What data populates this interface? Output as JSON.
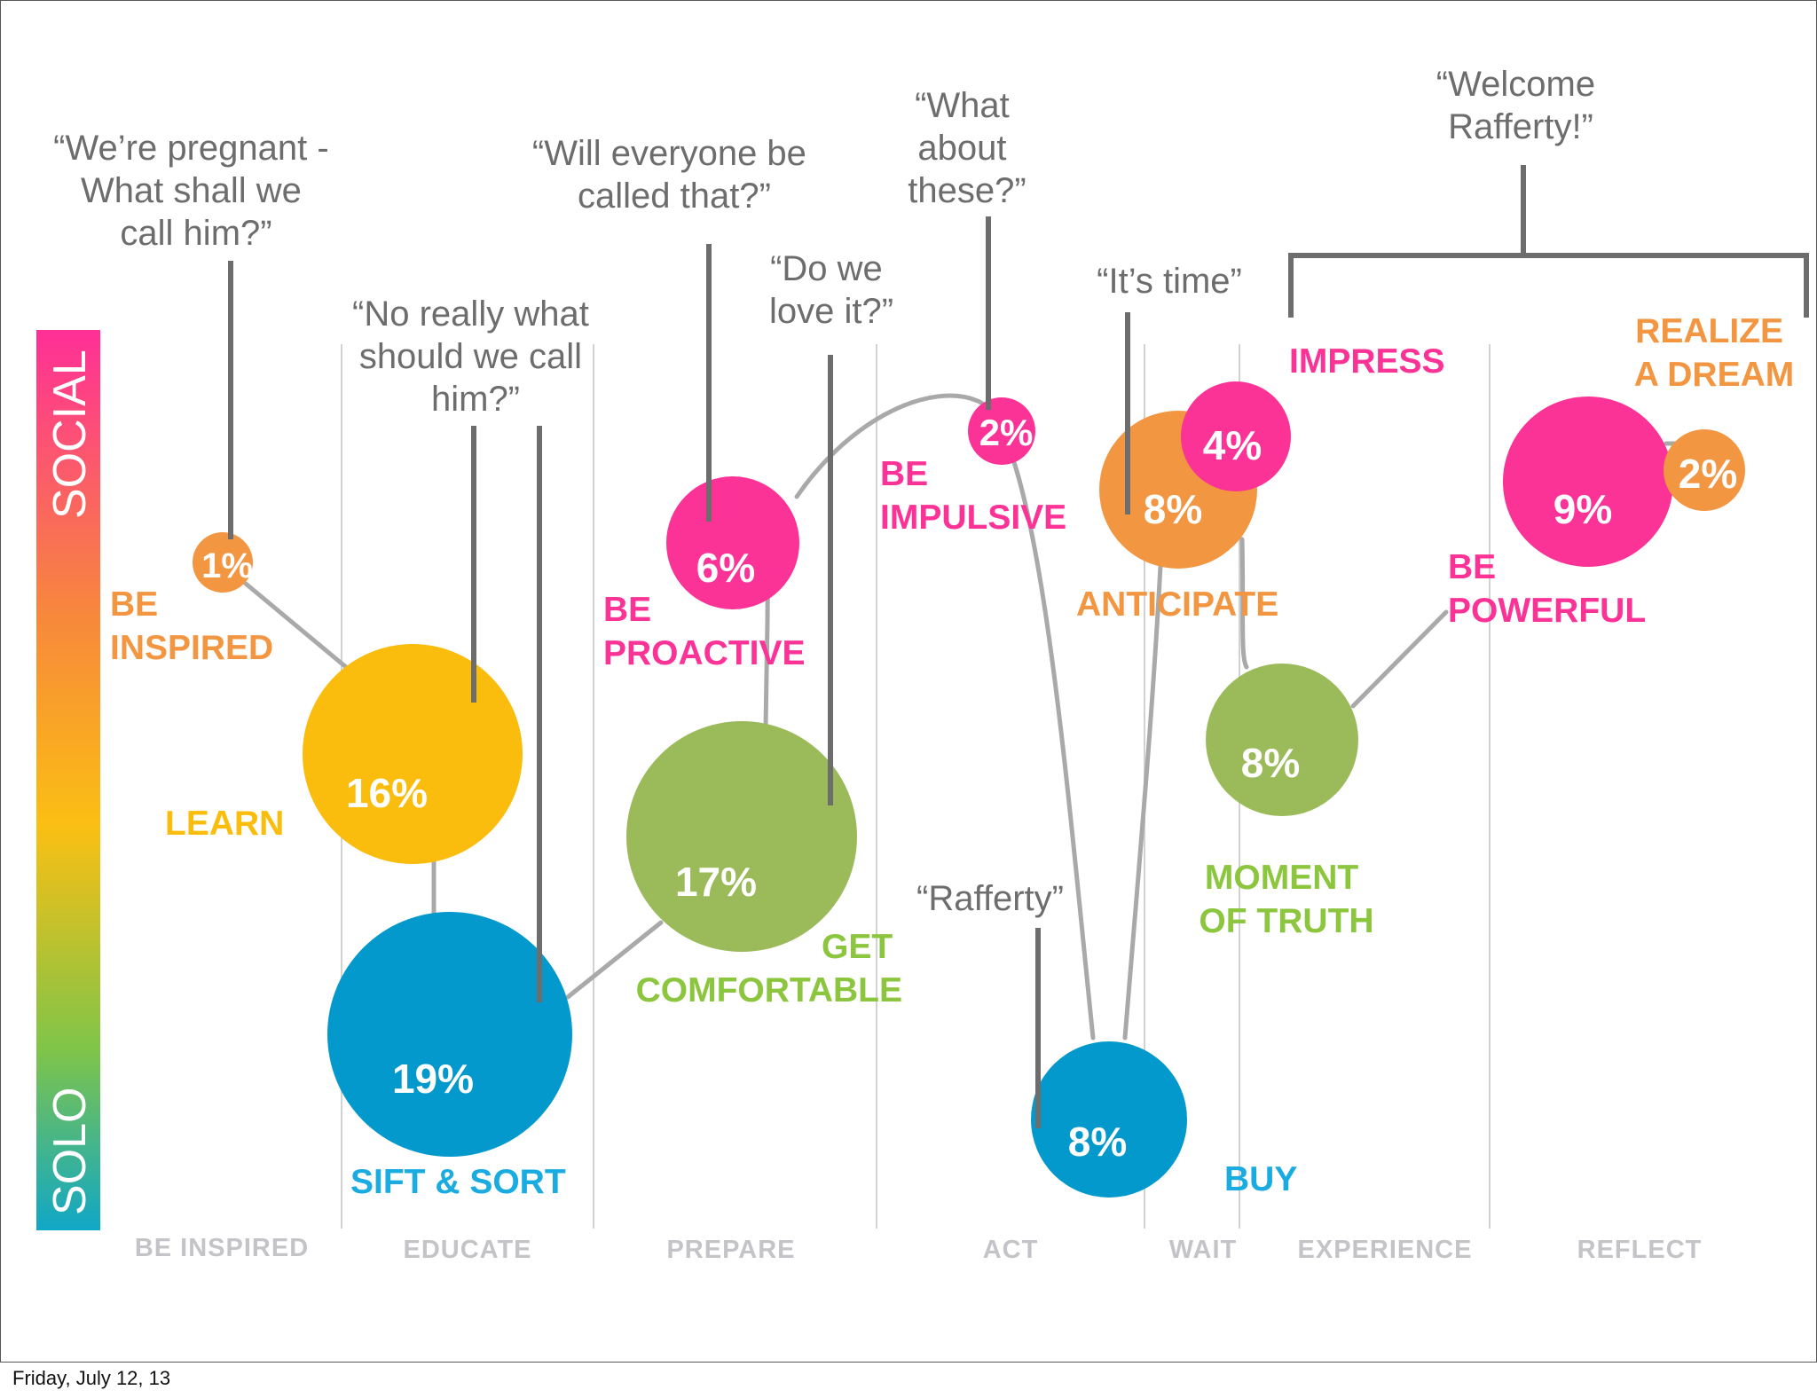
{
  "colors": {
    "orange": "#f29642",
    "yellow": "#fbbd0d",
    "blue": "#0399cc",
    "green": "#9bbb5a",
    "pink": "#fb3396",
    "leader": "#6d6d6d",
    "curve": "#a9a9a9",
    "divider": "#d2d2d2",
    "column_label": "#c4c4c8",
    "quote_text": "#6d6d6d"
  },
  "axis": {
    "top_label": "SOCIAL",
    "bottom_label": "SOLO"
  },
  "columns": [
    "BE INSPIRED",
    "EDUCATE",
    "PREPARE",
    "ACT",
    "WAIT",
    "EXPERIENCE",
    "REFLECT"
  ],
  "bubbles": [
    {
      "id": "be-inspired",
      "label_lines": [
        "BE",
        "INSPIRED"
      ],
      "percent": "1%",
      "value": 1,
      "color": "orange"
    },
    {
      "id": "learn",
      "label_lines": [
        "LEARN"
      ],
      "percent": "16%",
      "value": 16,
      "color": "yellow"
    },
    {
      "id": "sift-sort",
      "label_lines": [
        "SIFT & SORT"
      ],
      "percent": "19%",
      "value": 19,
      "color": "blue"
    },
    {
      "id": "be-proactive",
      "label_lines": [
        "BE",
        "PROACTIVE"
      ],
      "percent": "6%",
      "value": 6,
      "color": "pink"
    },
    {
      "id": "get-comfortable",
      "label_lines": [
        "GET",
        "COMFORTABLE"
      ],
      "percent": "17%",
      "value": 17,
      "color": "green"
    },
    {
      "id": "be-impulsive",
      "label_lines": [
        "BE",
        "IMPULSIVE"
      ],
      "percent": "2%",
      "value": 2,
      "color": "pink"
    },
    {
      "id": "buy",
      "label_lines": [
        "BUY"
      ],
      "percent": "8%",
      "value": 8,
      "color": "blue"
    },
    {
      "id": "anticipate",
      "label_lines": [
        "ANTICIPATE"
      ],
      "percent": "8%",
      "value": 8,
      "color": "orange"
    },
    {
      "id": "impress",
      "label_lines": [
        "IMPRESS"
      ],
      "percent": "4%",
      "value": 4,
      "color": "pink"
    },
    {
      "id": "moment-of-truth",
      "label_lines": [
        "MOMENT",
        "OF TRUTH"
      ],
      "percent": "8%",
      "value": 8,
      "color": "green"
    },
    {
      "id": "be-powerful",
      "label_lines": [
        "BE",
        "POWERFUL"
      ],
      "percent": "9%",
      "value": 9,
      "color": "pink"
    },
    {
      "id": "realize-a-dream",
      "label_lines": [
        "REALIZE",
        "A DREAM"
      ],
      "percent": "2%",
      "value": 2,
      "color": "orange"
    }
  ],
  "quotes": [
    {
      "id": "pregnant",
      "lines": [
        "“We’re pregnant -",
        "What shall we",
        "call him?”"
      ]
    },
    {
      "id": "no-really",
      "lines": [
        "“No really what",
        "should we call",
        "him?”"
      ]
    },
    {
      "id": "everyone",
      "lines": [
        "“Will everyone be",
        "called that?”"
      ]
    },
    {
      "id": "love-it",
      "lines": [
        "“Do we",
        "love it?”"
      ]
    },
    {
      "id": "about-these",
      "lines": [
        "“What",
        "about",
        "these?”"
      ]
    },
    {
      "id": "its-time",
      "lines": [
        "“It’s time”"
      ]
    },
    {
      "id": "welcome",
      "lines": [
        "“Welcome",
        "Rafferty!”"
      ]
    },
    {
      "id": "rafferty",
      "lines": [
        "“Rafferty”"
      ]
    }
  ],
  "footer": {
    "date": "Friday, July 12, 13"
  }
}
